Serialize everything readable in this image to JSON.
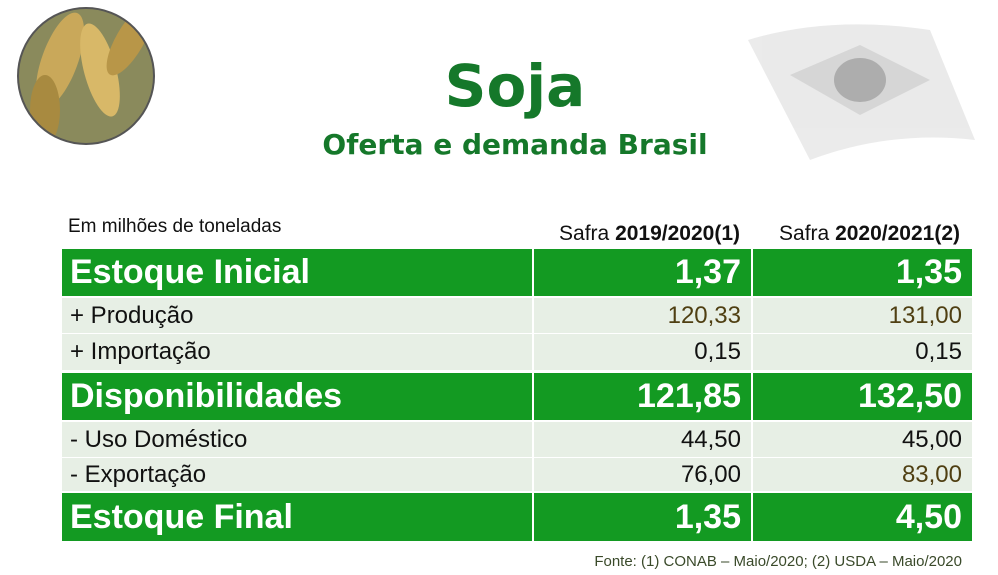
{
  "header": {
    "title": "Soja",
    "subtitle": "Oferta e demanda Brasil"
  },
  "table": {
    "unit_note": "Em milhões de toneladas",
    "columns": [
      {
        "prefix": "Safra",
        "season": "2019/2020(1)"
      },
      {
        "prefix": "Safra",
        "season": "2020/2021(2)"
      }
    ],
    "rows": [
      {
        "label": "Estoque Inicial",
        "values": [
          "1,37",
          "1,35"
        ]
      },
      {
        "label": "+ Produção",
        "values": [
          "120,33",
          "131,00"
        ]
      },
      {
        "label": "+ Importação",
        "values": [
          "0,15",
          "0,15"
        ]
      },
      {
        "label": "Disponibilidades",
        "values": [
          "121,85",
          "132,50"
        ]
      },
      {
        "label": "- Uso Doméstico",
        "values": [
          "44,50",
          "45,00"
        ]
      },
      {
        "label": "- Exportação",
        "values": [
          "76,00",
          "83,00"
        ]
      },
      {
        "label": "Estoque Final",
        "values": [
          "1,35",
          "4,50"
        ]
      }
    ]
  },
  "footer": {
    "source": "Fonte: (1) CONAB – Maio/2020; (2) USDA – Maio/2020"
  }
}
